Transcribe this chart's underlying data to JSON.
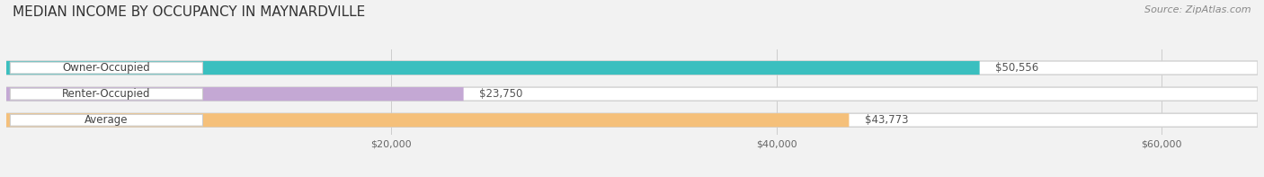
{
  "title": "MEDIAN INCOME BY OCCUPANCY IN MAYNARDVILLE",
  "source": "Source: ZipAtlas.com",
  "categories": [
    "Owner-Occupied",
    "Renter-Occupied",
    "Average"
  ],
  "values": [
    50556,
    23750,
    43773
  ],
  "labels": [
    "$50,556",
    "$23,750",
    "$43,773"
  ],
  "bar_colors": [
    "#3ABFBF",
    "#C4A8D4",
    "#F5C07A"
  ],
  "bg_color": "#f2f2f2",
  "bar_bg_color": "#e8e8e8",
  "xmax": 65000,
  "xtick_labels": [
    "$20,000",
    "$40,000",
    "$60,000"
  ],
  "xtick_values": [
    20000,
    40000,
    60000
  ],
  "title_fontsize": 11,
  "source_fontsize": 8,
  "label_fontsize": 8.5,
  "cat_fontsize": 8.5
}
